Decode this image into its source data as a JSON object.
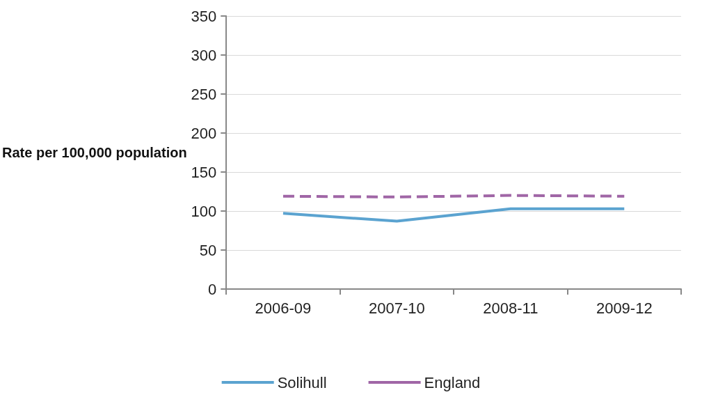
{
  "chart_data": {
    "type": "line",
    "ylabel": "Rate per 100,000 population",
    "categories": [
      "2006-09",
      "2007-10",
      "2008-11",
      "2009-12"
    ],
    "series": [
      {
        "name": "Solihull",
        "color": "#5ba3d0",
        "values": [
          97,
          87,
          103,
          103
        ],
        "line_style": "solid"
      },
      {
        "name": "England",
        "color": "#a066a6",
        "values": [
          119,
          118,
          120,
          119
        ],
        "line_style": "dashed"
      }
    ],
    "ylim": [
      0,
      350
    ],
    "yticks": [
      0,
      50,
      100,
      150,
      200,
      250,
      300,
      350
    ],
    "grid": "y",
    "legend": "bottom",
    "marker": "none"
  }
}
